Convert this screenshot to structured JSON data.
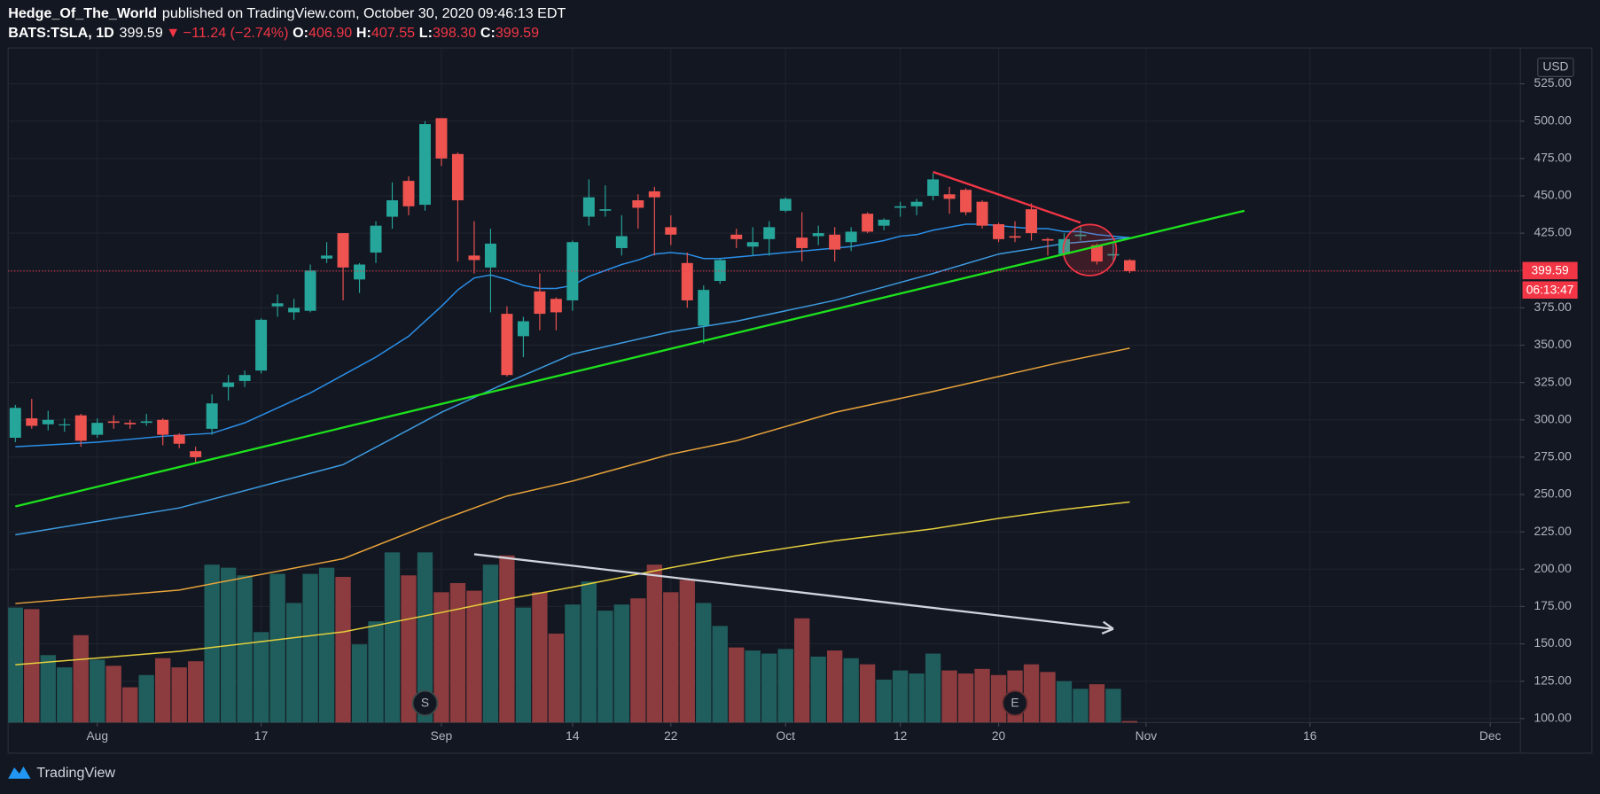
{
  "header": {
    "author": "Hedge_Of_The_World",
    "published": "published on TradingView.com, October 30, 2020 09:46:13 EDT"
  },
  "legend": {
    "symbol": "BATS:TSLA, 1D",
    "price": "399.59",
    "direction": "▼",
    "change": "−11.24 (−2.74%)",
    "ohlc_keys": [
      "O:",
      "H:",
      "L:",
      "C:"
    ],
    "ohlc_values": [
      "406.90",
      "407.55",
      "398.30",
      "399.59"
    ]
  },
  "footer": "TradingView",
  "chart_data": {
    "type": "candlestick",
    "currency": "USD",
    "ylim": [
      97.3,
      549
    ],
    "yticks": [
      {
        "value": 100,
        "label": "100.00"
      },
      {
        "value": 125,
        "label": "125.00"
      },
      {
        "value": 150,
        "label": "150.00"
      },
      {
        "value": 175,
        "label": "175.00"
      },
      {
        "value": 200,
        "label": "200.00"
      },
      {
        "value": 225,
        "label": "225.00"
      },
      {
        "value": 250,
        "label": "250.00"
      },
      {
        "value": 275,
        "label": "275.00"
      },
      {
        "value": 300,
        "label": "300.00"
      },
      {
        "value": 325,
        "label": "325.00"
      },
      {
        "value": 350,
        "label": "350.00"
      },
      {
        "value": 375,
        "label": "375.00"
      },
      {
        "value": 400,
        "label": "400.00"
      },
      {
        "value": 425,
        "label": "425.00"
      },
      {
        "value": 450,
        "label": "450.00"
      },
      {
        "value": 475,
        "label": "475.00"
      },
      {
        "value": 500,
        "label": "500.00"
      },
      {
        "value": 525,
        "label": "525.00"
      }
    ],
    "xticks": [
      {
        "value": "2020-08-03",
        "label": "Aug"
      },
      {
        "value": "2020-08-17",
        "label": "17"
      },
      {
        "value": "2020-09-01",
        "label": "Sep"
      },
      {
        "value": "2020-09-14",
        "label": "14"
      },
      {
        "value": "2020-09-22",
        "label": "22"
      },
      {
        "value": "2020-10-01",
        "label": "Oct"
      },
      {
        "value": "2020-10-12",
        "label": "12"
      },
      {
        "value": "2020-10-20",
        "label": "20"
      },
      {
        "value": "2020-11-02",
        "label": "Nov"
      },
      {
        "value": "2020-11-16",
        "label": "16"
      },
      {
        "value": "2020-12-01",
        "label": "Dec"
      }
    ],
    "grid": true,
    "candles": {
      "up_color": "#26a69a",
      "down_color": "#ef5350",
      "categories": [
        "2020-07-27",
        "2020-07-28",
        "2020-07-29",
        "2020-07-30",
        "2020-07-31",
        "2020-08-03",
        "2020-08-04",
        "2020-08-05",
        "2020-08-06",
        "2020-08-07",
        "2020-08-10",
        "2020-08-11",
        "2020-08-12",
        "2020-08-13",
        "2020-08-14",
        "2020-08-17",
        "2020-08-18",
        "2020-08-19",
        "2020-08-20",
        "2020-08-21",
        "2020-08-24",
        "2020-08-25",
        "2020-08-26",
        "2020-08-27",
        "2020-08-28",
        "2020-08-31",
        "2020-09-01",
        "2020-09-02",
        "2020-09-03",
        "2020-09-04",
        "2020-09-08",
        "2020-09-09",
        "2020-09-10",
        "2020-09-11",
        "2020-09-14",
        "2020-09-15",
        "2020-09-16",
        "2020-09-17",
        "2020-09-18",
        "2020-09-21",
        "2020-09-22",
        "2020-09-23",
        "2020-09-24",
        "2020-09-25",
        "2020-09-28",
        "2020-09-29",
        "2020-09-30",
        "2020-10-01",
        "2020-10-02",
        "2020-10-05",
        "2020-10-06",
        "2020-10-07",
        "2020-10-08",
        "2020-10-09",
        "2020-10-12",
        "2020-10-13",
        "2020-10-14",
        "2020-10-15",
        "2020-10-16",
        "2020-10-19",
        "2020-10-20",
        "2020-10-21",
        "2020-10-22",
        "2020-10-23",
        "2020-10-26",
        "2020-10-27",
        "2020-10-28",
        "2020-10-29",
        "2020-10-30"
      ],
      "open": [
        288,
        301,
        297,
        297,
        303,
        290,
        299,
        298,
        298,
        300,
        290,
        279,
        294,
        322,
        326,
        333,
        376,
        372,
        373,
        408,
        425,
        394,
        412,
        436,
        460,
        444,
        502,
        478,
        410,
        402,
        371,
        356,
        386,
        381,
        380,
        436,
        440,
        415,
        447,
        453,
        429,
        405,
        363,
        393,
        424,
        416,
        421,
        440,
        422,
        423,
        424,
        419,
        438,
        430,
        442,
        443,
        450,
        451,
        454,
        446,
        431,
        423,
        441,
        421,
        411,
        423,
        417,
        410,
        406.9
      ],
      "high": [
        310,
        314,
        306,
        301,
        304,
        301,
        303,
        300,
        304,
        301,
        291,
        282,
        317,
        330,
        333,
        368,
        384,
        381,
        404,
        419,
        425,
        405,
        433,
        459,
        463,
        500,
        502,
        479,
        433,
        428,
        376,
        369,
        398,
        382,
        420,
        461,
        457,
        437,
        451,
        456,
        437,
        412,
        390,
        408,
        428,
        429,
        433,
        449,
        439,
        430,
        429,
        429,
        439,
        435,
        446,
        448,
        465,
        456,
        455,
        447,
        432,
        433,
        445,
        422,
        425,
        430,
        418,
        418,
        407.55
      ],
      "low": [
        285,
        294,
        293,
        292,
        282,
        288,
        294,
        294,
        296,
        283,
        281,
        271,
        290,
        313,
        322,
        331,
        369,
        367,
        372,
        405,
        380,
        385,
        405,
        428,
        437,
        440,
        470,
        406,
        398,
        372,
        329,
        342,
        360,
        360,
        373,
        430,
        436,
        410,
        428,
        410,
        417,
        375,
        351,
        391,
        415,
        410,
        410,
        439,
        406,
        417,
        406,
        413,
        425,
        427,
        436,
        437,
        447,
        438,
        437,
        428,
        419,
        419,
        420,
        410,
        410,
        420,
        404,
        406,
        398.3
      ],
      "close": [
        308,
        296,
        300,
        297,
        286,
        298,
        298,
        297,
        299,
        290,
        284,
        275,
        311,
        325,
        330,
        367,
        378,
        375,
        400,
        410,
        402,
        404,
        430,
        447,
        443,
        498,
        475,
        447,
        407,
        418,
        330,
        366,
        371,
        372,
        419,
        449,
        441,
        423,
        442,
        449,
        424,
        380,
        387,
        407,
        421,
        419,
        429,
        448,
        415,
        425,
        414,
        426,
        426,
        434,
        443,
        446,
        461,
        448,
        439,
        430,
        421,
        422,
        425,
        420,
        421,
        424,
        406,
        411,
        399.59
      ]
    },
    "volume": {
      "up_color": "#1f5e5c",
      "down_color": "#8c3b3e",
      "vlim": [
        0,
        440
      ],
      "values": [
        75,
        74,
        44,
        36,
        57,
        41,
        37,
        23,
        31,
        42,
        36,
        40,
        103,
        101,
        96,
        59,
        97,
        78,
        97,
        101,
        95,
        51,
        66,
        111,
        96,
        111,
        85,
        91,
        86,
        103,
        109,
        75,
        85,
        58,
        77,
        92,
        73,
        77,
        81,
        103,
        85,
        93,
        78,
        63,
        49,
        47,
        45,
        48,
        68,
        43,
        47,
        42,
        38,
        28,
        34,
        32,
        45,
        34,
        32,
        35,
        31,
        34,
        38,
        33,
        27,
        22,
        25,
        22,
        1
      ]
    },
    "indicators": [
      {
        "color": "#2a8fe8",
        "x": [
          "2020-07-27",
          "2020-08-03",
          "2020-08-07",
          "2020-08-12",
          "2020-08-14",
          "2020-08-18",
          "2020-08-20",
          "2020-08-24",
          "2020-08-26",
          "2020-08-28",
          "2020-08-31",
          "2020-09-01",
          "2020-09-02",
          "2020-09-03",
          "2020-09-04",
          "2020-09-08",
          "2020-09-09",
          "2020-09-10",
          "2020-09-11",
          "2020-09-14",
          "2020-09-15",
          "2020-09-16",
          "2020-09-17",
          "2020-09-18",
          "2020-09-21",
          "2020-09-22",
          "2020-09-23",
          "2020-09-24",
          "2020-09-25",
          "2020-09-28",
          "2020-09-30",
          "2020-10-02",
          "2020-10-05",
          "2020-10-06",
          "2020-10-07",
          "2020-10-08",
          "2020-10-09",
          "2020-10-12",
          "2020-10-13",
          "2020-10-14",
          "2020-10-15",
          "2020-10-16",
          "2020-10-19",
          "2020-10-20",
          "2020-10-21",
          "2020-10-22",
          "2020-10-23",
          "2020-10-26",
          "2020-10-27",
          "2020-10-28",
          "2020-10-29",
          "2020-10-30"
        ],
        "values": [
          282,
          285,
          289,
          291,
          298,
          308,
          318,
          330,
          342,
          356,
          366,
          376,
          387,
          395,
          397,
          394,
          390,
          388,
          388,
          390,
          396,
          400,
          404,
          407,
          411,
          412,
          411,
          408,
          408,
          409,
          411,
          413,
          414,
          415,
          416,
          418,
          420,
          423,
          424,
          427,
          429,
          431,
          431,
          430,
          429,
          428,
          428,
          426,
          426,
          424,
          423,
          422
        ]
      },
      {
        "color": "#3d9be0",
        "x": [
          "2020-07-27",
          "2020-08-10",
          "2020-08-24",
          "2020-09-01",
          "2020-09-08",
          "2020-09-14",
          "2020-09-22",
          "2020-09-28",
          "2020-10-06",
          "2020-10-14",
          "2020-10-20",
          "2020-10-26",
          "2020-10-30"
        ],
        "values": [
          223,
          241,
          270,
          305,
          325,
          344,
          359,
          366,
          380,
          398,
          411,
          418,
          422
        ]
      },
      {
        "color": "#e8a33a",
        "x": [
          "2020-07-27",
          "2020-08-10",
          "2020-08-24",
          "2020-09-01",
          "2020-09-08",
          "2020-09-14",
          "2020-09-22",
          "2020-09-28",
          "2020-10-06",
          "2020-10-14",
          "2020-10-20",
          "2020-10-26",
          "2020-10-30"
        ],
        "values": [
          177,
          186,
          207,
          233,
          249,
          259,
          277,
          286,
          305,
          319,
          329,
          339,
          348
        ]
      },
      {
        "color": "#e5cf3c",
        "x": [
          "2020-07-27",
          "2020-08-10",
          "2020-08-24",
          "2020-09-01",
          "2020-09-08",
          "2020-09-14",
          "2020-09-22",
          "2020-09-28",
          "2020-10-06",
          "2020-10-14",
          "2020-10-20",
          "2020-10-26",
          "2020-10-30"
        ],
        "values": [
          136,
          145,
          158,
          171,
          180,
          188,
          201,
          209,
          219,
          227,
          234,
          240,
          245
        ]
      }
    ],
    "drawings": [
      {
        "color": "#1de21d",
        "x": [
          "2020-07-27",
          "2020-11-10"
        ],
        "values": [
          242,
          440
        ]
      },
      {
        "color": "#f23645",
        "x": [
          "2020-10-14",
          "2020-10-27"
        ],
        "values": [
          466,
          432
        ]
      },
      {
        "color": "#d1d4dc",
        "x": [
          "2020-09-03",
          "2020-10-29"
        ],
        "values": [
          210,
          160
        ],
        "arrow": true
      }
    ],
    "events": [
      {
        "date": "2020-08-31",
        "label": "S"
      },
      {
        "date": "2020-10-21",
        "label": "E"
      }
    ],
    "last_price": 399.59,
    "countdown": "06:13:47"
  }
}
